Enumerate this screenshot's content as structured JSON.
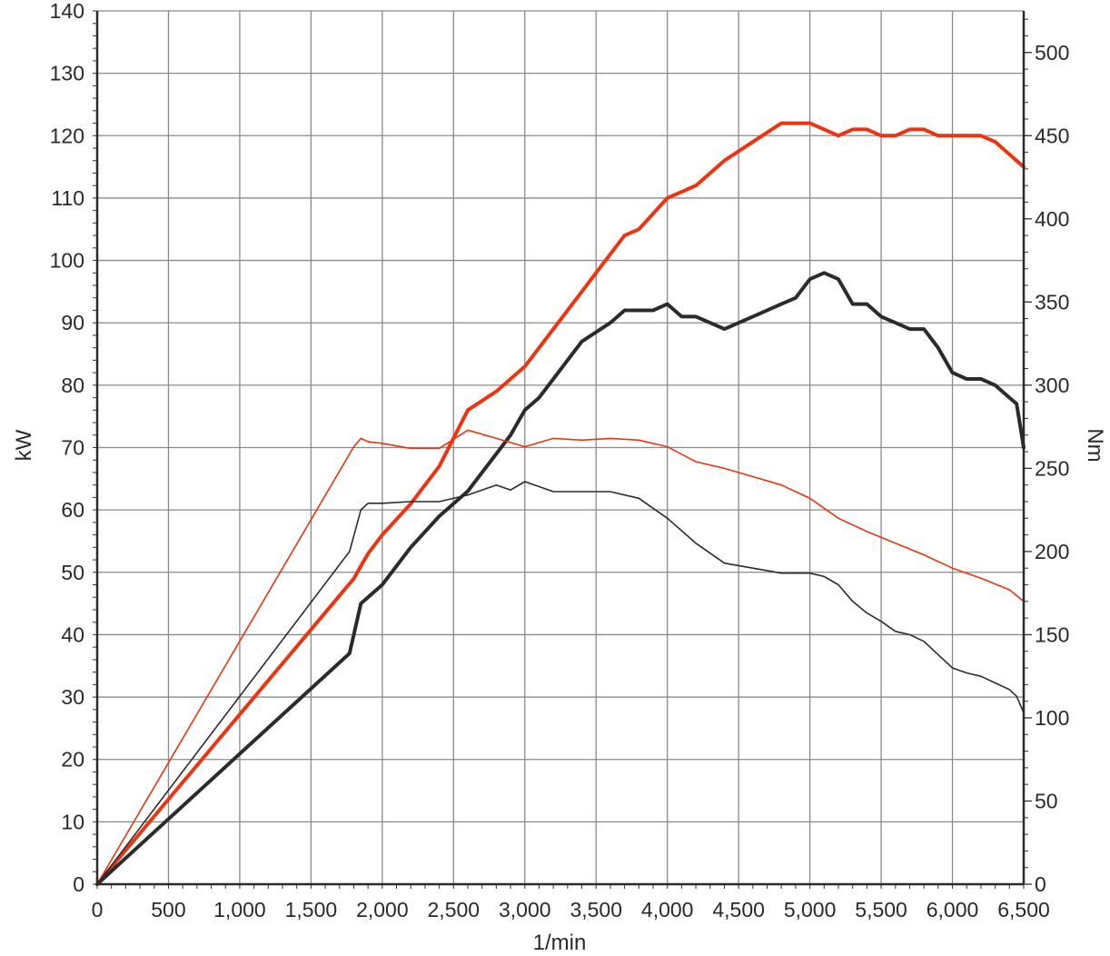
{
  "chart_data": {
    "type": "line",
    "title": "",
    "xlabel": "1/min",
    "ylabel_left": "kW",
    "ylabel_right": "Nm",
    "xlim": [
      0,
      6500
    ],
    "ylim_left": [
      0,
      140
    ],
    "ylim_right": [
      0,
      525
    ],
    "x_ticks": [
      "0",
      "500",
      "1,000",
      "1,500",
      "2,000",
      "2,500",
      "3,000",
      "3,500",
      "4,000",
      "4,500",
      "5,000",
      "5,500",
      "6,000",
      "6,500"
    ],
    "y_left_ticks": [
      "0",
      "10",
      "20",
      "30",
      "40",
      "50",
      "60",
      "70",
      "80",
      "90",
      "100",
      "110",
      "120",
      "130",
      "140"
    ],
    "y_right_ticks": [
      "0",
      "50",
      "100",
      "150",
      "200",
      "250",
      "300",
      "350",
      "400",
      "450",
      "500"
    ],
    "grid": true,
    "legend": "none",
    "series": [
      {
        "axis": "left",
        "color": "#ee3311",
        "stroke": "thick",
        "x": [
          0,
          1800,
          1850,
          1900,
          2000,
          2200,
          2400,
          2600,
          2800,
          3000,
          3200,
          3400,
          3600,
          3700,
          3800,
          4000,
          4200,
          4400,
          4600,
          4800,
          4900,
          5000,
          5100,
          5200,
          5300,
          5400,
          5500,
          5600,
          5700,
          5800,
          5900,
          6000,
          6100,
          6200,
          6300,
          6400,
          6500
        ],
        "y": [
          0,
          49,
          51,
          53,
          56,
          61,
          67,
          76,
          79,
          83,
          89,
          95,
          101,
          104,
          105,
          110,
          112,
          116,
          119,
          122,
          122,
          122,
          121,
          120,
          121,
          121,
          120,
          120,
          121,
          121,
          120,
          120,
          120,
          120,
          119,
          117,
          115
        ]
      },
      {
        "axis": "left",
        "color": "#2b2b2b",
        "stroke": "thick",
        "x": [
          0,
          1770,
          1800,
          1850,
          2000,
          2200,
          2400,
          2600,
          2800,
          2900,
          3000,
          3100,
          3200,
          3400,
          3600,
          3700,
          3800,
          3900,
          4000,
          4100,
          4200,
          4300,
          4400,
          4600,
          4800,
          4900,
          5000,
          5100,
          5200,
          5300,
          5400,
          5500,
          5600,
          5700,
          5800,
          5900,
          6000,
          6100,
          6200,
          6300,
          6400,
          6450,
          6500
        ],
        "y": [
          0,
          37,
          40,
          45,
          48,
          54,
          59,
          63,
          69,
          72,
          76,
          78,
          81,
          87,
          90,
          92,
          92,
          92,
          93,
          91,
          91,
          90,
          89,
          91,
          93,
          94,
          97,
          98,
          97,
          93,
          93,
          91,
          90,
          89,
          89,
          86,
          82,
          81,
          81,
          80,
          78,
          77,
          70
        ]
      },
      {
        "axis": "right",
        "color": "#ee3311",
        "stroke": "thin",
        "x": [
          0,
          1800,
          1850,
          1900,
          2000,
          2200,
          2400,
          2600,
          2800,
          3000,
          3200,
          3400,
          3600,
          3800,
          4000,
          4200,
          4400,
          4600,
          4800,
          5000,
          5200,
          5400,
          5600,
          5800,
          6000,
          6200,
          6400,
          6500
        ],
        "y": [
          0,
          263,
          268,
          266,
          265,
          262,
          262,
          273,
          268,
          263,
          268,
          267,
          268,
          267,
          263,
          254,
          250,
          245,
          240,
          232,
          220,
          212,
          205,
          198,
          190,
          184,
          177,
          170
        ]
      },
      {
        "axis": "right",
        "color": "#2b2b2b",
        "stroke": "thin",
        "x": [
          0,
          1770,
          1850,
          1900,
          2000,
          2200,
          2400,
          2600,
          2800,
          2900,
          3000,
          3200,
          3400,
          3600,
          3800,
          4000,
          4200,
          4400,
          4600,
          4800,
          5000,
          5100,
          5200,
          5300,
          5400,
          5500,
          5600,
          5700,
          5800,
          5900,
          6000,
          6100,
          6200,
          6300,
          6400,
          6450,
          6500
        ],
        "y": [
          0,
          200,
          225,
          229,
          229,
          230,
          230,
          234,
          240,
          237,
          242,
          236,
          236,
          236,
          232,
          220,
          205,
          193,
          190,
          187,
          187,
          185,
          180,
          170,
          163,
          158,
          152,
          150,
          146,
          138,
          130,
          127,
          125,
          121,
          117,
          113,
          103
        ]
      }
    ]
  }
}
